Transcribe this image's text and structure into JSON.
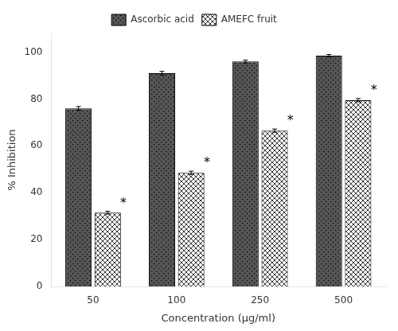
{
  "chart_data": {
    "type": "bar",
    "categories": [
      "50",
      "100",
      "250",
      "500"
    ],
    "series": [
      {
        "name": "Ascorbic acid",
        "color": "#555555",
        "values": [
          76.0,
          91.0,
          96.0,
          98.5
        ],
        "errors": [
          0.8,
          0.8,
          0.6,
          0.5
        ]
      },
      {
        "name": "AMEFC fruit",
        "color": "#ffffff",
        "values": [
          31.5,
          48.5,
          66.5,
          79.5
        ],
        "errors": [
          0.6,
          0.7,
          0.7,
          0.7
        ]
      }
    ],
    "xlabel": "Concentration (μg/ml)",
    "ylabel": "% Inhibition",
    "ylim": [
      0,
      108
    ],
    "yticks": [
      0,
      20,
      40,
      60,
      80,
      100
    ],
    "grid": false,
    "legend": "top",
    "annotations": [
      {
        "text": "*",
        "x": "50",
        "series": "AMEFC fruit"
      },
      {
        "text": "*",
        "x": "100",
        "series": "AMEFC fruit"
      },
      {
        "text": "*",
        "x": "250",
        "series": "AMEFC fruit"
      },
      {
        "text": "*",
        "x": "500",
        "series": "AMEFC fruit"
      }
    ]
  }
}
